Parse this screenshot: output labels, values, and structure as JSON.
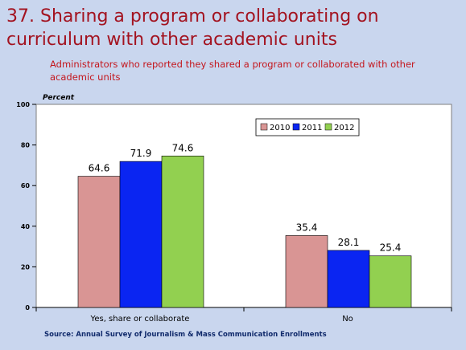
{
  "slide": {
    "title": "37. Sharing a program or collaborating on curriculum with other academic units",
    "subtitle": "Administrators who reported they shared a program or collaborated with other academic units",
    "source": "Source: Annual Survey of Journalism & Mass Communication Enrollments"
  },
  "colors": {
    "2010": "#d99594",
    "2011": "#0a25f2",
    "2012": "#92d050",
    "background": "#c9d6ee",
    "plot": "#ffffff"
  },
  "chart_data": {
    "type": "bar",
    "ylabel": "Percent",
    "ylim": [
      0,
      100
    ],
    "yticks": [
      0,
      20,
      40,
      60,
      80,
      100
    ],
    "categories": [
      "Yes, share or collaborate",
      "No"
    ],
    "series": [
      {
        "name": "2010",
        "values": [
          64.6,
          35.4
        ],
        "labels": [
          "64.6",
          "35.4"
        ]
      },
      {
        "name": "2011",
        "values": [
          71.9,
          28.1
        ],
        "labels": [
          "71.9",
          "28.1"
        ]
      },
      {
        "name": "2012",
        "values": [
          74.6,
          25.4
        ],
        "labels": [
          "74.6",
          "25.4"
        ]
      }
    ],
    "grid": false,
    "legend": "top-right",
    "data_labels": true
  }
}
